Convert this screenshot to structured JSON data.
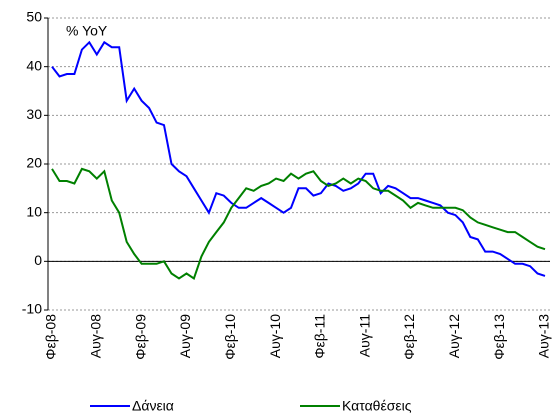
{
  "chart_data": {
    "type": "line",
    "annotation": "% YoY",
    "categories": [
      "Φεβ-08",
      null,
      null,
      null,
      null,
      null,
      "Αυγ-08",
      null,
      null,
      null,
      null,
      null,
      "Φεβ-09",
      null,
      null,
      null,
      null,
      null,
      "Αυγ-09",
      null,
      null,
      null,
      null,
      null,
      "Φεβ-10",
      null,
      null,
      null,
      null,
      null,
      "Αυγ-10",
      null,
      null,
      null,
      null,
      null,
      "Φεβ-11",
      null,
      null,
      null,
      null,
      null,
      "Αυγ-11",
      null,
      null,
      null,
      null,
      null,
      "Φεβ-12",
      null,
      null,
      null,
      null,
      null,
      "Αυγ-12",
      null,
      null,
      null,
      null,
      null,
      "Φεβ-13",
      null,
      null,
      null,
      null,
      null,
      "Αυγ-13"
    ],
    "series": [
      {
        "name": "Δάνεια",
        "color": "#0000ff",
        "values": [
          40,
          38,
          38.5,
          38.5,
          43.5,
          45,
          42.5,
          45,
          44,
          44,
          33,
          35.5,
          33,
          31.5,
          28.5,
          28,
          20,
          18.5,
          17.5,
          15,
          12.5,
          10,
          14,
          13.5,
          12,
          11,
          11,
          12,
          13,
          12,
          11,
          10,
          11,
          15,
          15,
          13.5,
          14,
          16,
          15.5,
          14.5,
          15,
          16,
          18,
          18,
          14,
          15.5,
          15,
          14,
          13,
          13,
          12.5,
          12,
          11.5,
          10,
          9.5,
          8,
          5,
          4.5,
          2,
          2,
          1.5,
          0.5,
          -0.5,
          -0.5,
          -1,
          -2.5,
          -3
        ]
      },
      {
        "name": "Καταθέσεις",
        "color": "#008000",
        "values": [
          19,
          16.5,
          16.5,
          16,
          19,
          18.5,
          17,
          18.5,
          12.5,
          10,
          4,
          1.5,
          -0.5,
          -0.5,
          -0.5,
          0,
          -2.5,
          -3.5,
          -2.5,
          -3.5,
          1,
          4,
          6,
          8,
          11,
          13,
          15,
          14.5,
          15.5,
          16,
          17,
          16.5,
          18,
          17,
          18,
          18.5,
          16.5,
          15.5,
          16,
          17,
          16,
          17,
          16.5,
          15,
          14.5,
          14.5,
          13.5,
          12.5,
          11,
          12,
          11.5,
          11,
          11,
          11,
          11,
          10.5,
          9,
          8,
          7.5,
          7,
          6.5,
          6,
          6,
          5,
          4,
          3,
          2.5
        ]
      }
    ],
    "ylim": [
      -10,
      50
    ],
    "yticks": [
      -10,
      0,
      10,
      20,
      30,
      40,
      50
    ],
    "grid": true,
    "legend": "bottom"
  }
}
